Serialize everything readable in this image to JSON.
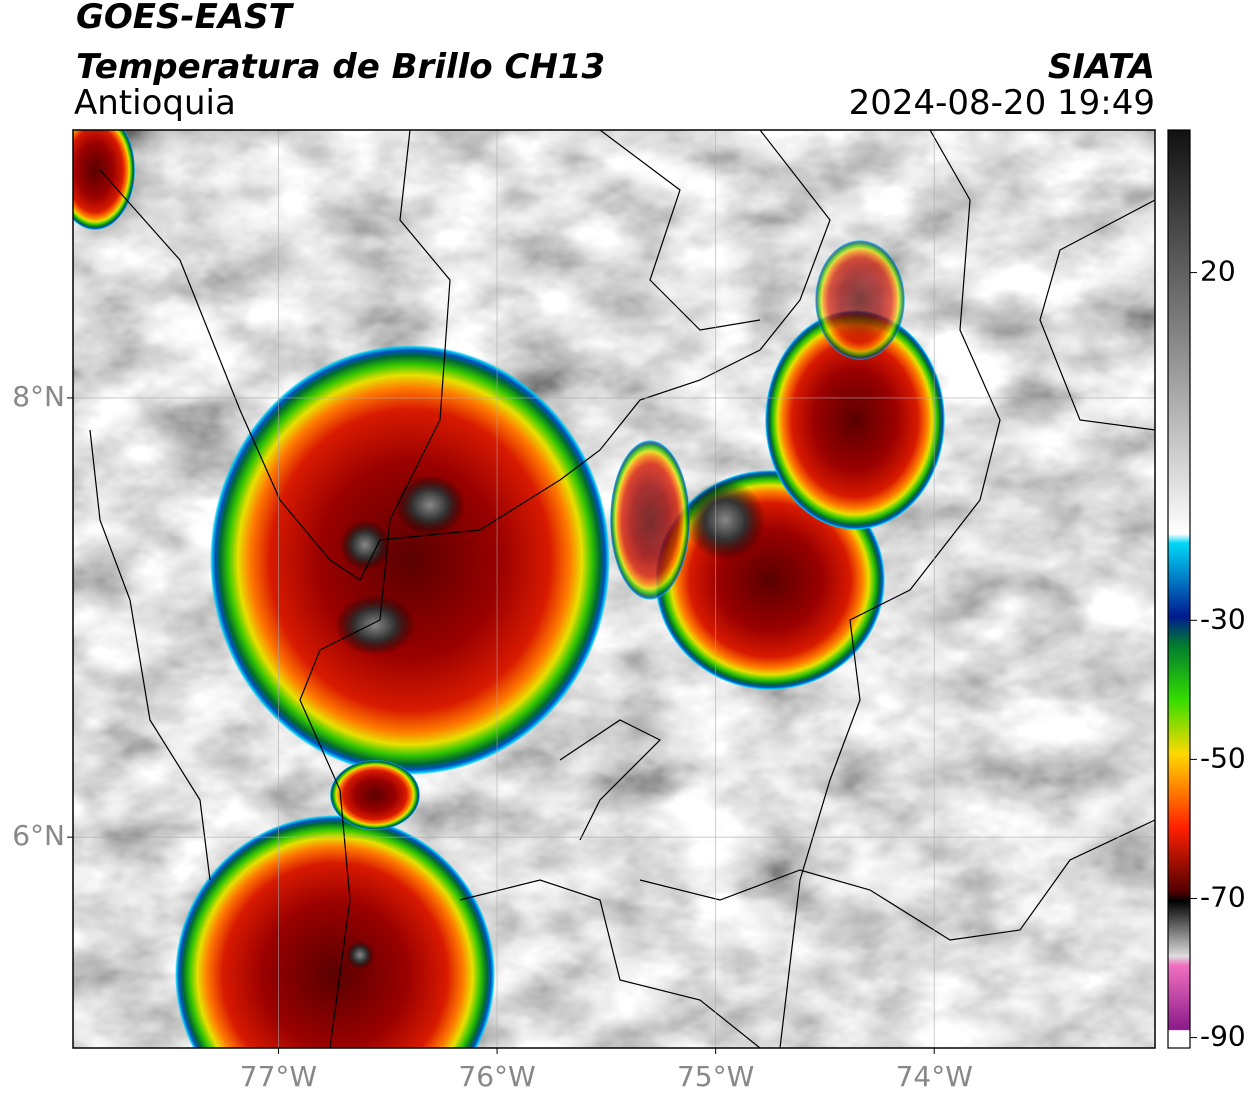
{
  "header": {
    "satellite": "GOES-EAST",
    "product": "Temperatura de Brillo CH13",
    "region": "Antioquia",
    "source": "SIATA",
    "datetime": "2024-08-20 19:49"
  },
  "map": {
    "xlim": [
      -77.94,
      -72.99
    ],
    "ylim": [
      5.04,
      9.22
    ],
    "xticks": [
      {
        "value": -77,
        "label": "77°W"
      },
      {
        "value": -76,
        "label": "76°W"
      },
      {
        "value": -75,
        "label": "75°W"
      },
      {
        "value": -74,
        "label": "74°W"
      }
    ],
    "yticks": [
      {
        "value": 8,
        "label": "8°N"
      },
      {
        "value": 6,
        "label": "6°N"
      }
    ],
    "grid": true
  },
  "colorbar": {
    "lim": [
      -91.5,
      40.5
    ],
    "ticks": [
      20,
      -30,
      -50,
      -70,
      -90
    ]
  }
}
